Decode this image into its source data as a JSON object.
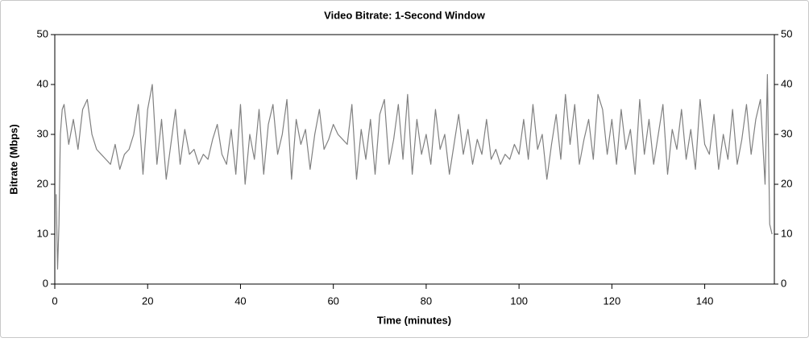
{
  "chart_data": {
    "type": "line",
    "title": "Video Bitrate: 1-Second Window",
    "xlabel": "Time (minutes)",
    "ylabel": "Bitrate (Mbps)",
    "xlim": [
      0,
      155
    ],
    "xticks": [
      0,
      20,
      40,
      60,
      80,
      100,
      120,
      140
    ],
    "ylim": [
      0,
      50
    ],
    "yticks": [
      0,
      10,
      20,
      30,
      40,
      50
    ],
    "y2lim": [
      0,
      50
    ],
    "y2ticks": [
      0,
      10,
      20,
      30,
      40,
      50
    ],
    "x": [
      0.3,
      0.6,
      0.9,
      1.2,
      1.6,
      2,
      3,
      4,
      5,
      6,
      7,
      8,
      9,
      10,
      11,
      12,
      13,
      14,
      15,
      16,
      17,
      18,
      19,
      20,
      21,
      22,
      23,
      24,
      25,
      26,
      27,
      28,
      29,
      30,
      31,
      32,
      33,
      34,
      35,
      36,
      37,
      38,
      39,
      40,
      41,
      42,
      43,
      44,
      45,
      46,
      47,
      48,
      49,
      50,
      51,
      52,
      53,
      54,
      55,
      56,
      57,
      58,
      59,
      60,
      61,
      62,
      63,
      64,
      65,
      66,
      67,
      68,
      69,
      70,
      71,
      72,
      73,
      74,
      75,
      76,
      77,
      78,
      79,
      80,
      81,
      82,
      83,
      84,
      85,
      86,
      87,
      88,
      89,
      90,
      91,
      92,
      93,
      94,
      95,
      96,
      97,
      98,
      99,
      100,
      101,
      102,
      103,
      104,
      105,
      106,
      107,
      108,
      109,
      110,
      111,
      112,
      113,
      114,
      115,
      116,
      117,
      118,
      119,
      120,
      121,
      122,
      123,
      124,
      125,
      126,
      127,
      128,
      129,
      130,
      131,
      132,
      133,
      134,
      135,
      136,
      137,
      138,
      139,
      140,
      141,
      142,
      143,
      144,
      145,
      146,
      147,
      148,
      149,
      150,
      151,
      152,
      153,
      153.5,
      154,
      154.5
    ],
    "series": [
      {
        "name": "Bitrate",
        "color": "#808080",
        "values": [
          18,
          3,
          12,
          30,
          35,
          36,
          28,
          33,
          27,
          35,
          37,
          30,
          27,
          26,
          25,
          24,
          28,
          23,
          26,
          27,
          30,
          36,
          22,
          35,
          40,
          24,
          33,
          21,
          28,
          35,
          24,
          31,
          26,
          27,
          24,
          26,
          25,
          29,
          32,
          26,
          24,
          31,
          22,
          36,
          20,
          30,
          25,
          35,
          22,
          32,
          36,
          26,
          30,
          37,
          21,
          33,
          28,
          31,
          23,
          30,
          35,
          27,
          29,
          32,
          30,
          29,
          28,
          36,
          21,
          31,
          25,
          33,
          22,
          34,
          37,
          24,
          29,
          36,
          25,
          38,
          22,
          33,
          26,
          30,
          24,
          35,
          27,
          30,
          22,
          28,
          34,
          26,
          31,
          24,
          29,
          26,
          33,
          25,
          27,
          24,
          26,
          25,
          28,
          26,
          33,
          25,
          36,
          27,
          30,
          21,
          28,
          34,
          25,
          38,
          28,
          36,
          24,
          29,
          33,
          25,
          38,
          35,
          26,
          33,
          24,
          35,
          27,
          31,
          22,
          37,
          26,
          33,
          24,
          30,
          36,
          22,
          31,
          27,
          35,
          25,
          31,
          23,
          37,
          28,
          26,
          34,
          23,
          30,
          25,
          35,
          24,
          29,
          36,
          26,
          33,
          37,
          20,
          42,
          12,
          10
        ]
      }
    ]
  }
}
